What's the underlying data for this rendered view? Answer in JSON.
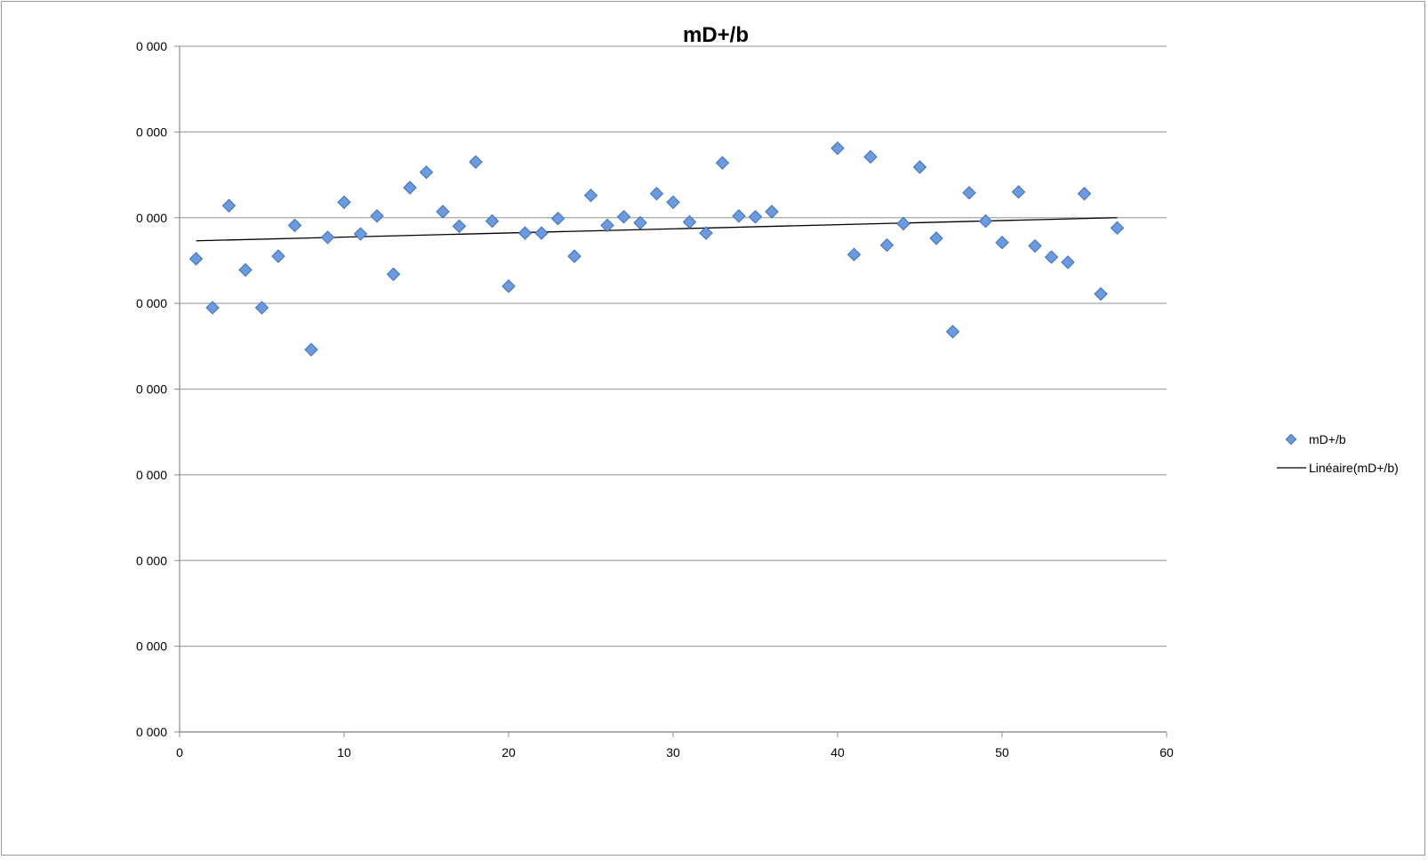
{
  "chart_data": {
    "type": "scatter",
    "title": "mD+/b",
    "xlabel": "",
    "ylabel": "",
    "xlim": [
      0,
      60
    ],
    "ylim": [
      0,
      8
    ],
    "x_ticks": [
      0,
      10,
      20,
      30,
      40,
      50,
      60
    ],
    "y_ticks": [
      0,
      1,
      2,
      3,
      4,
      5,
      6,
      7,
      8
    ],
    "y_tick_labels": [
      "0 000",
      "0 000",
      "0 000",
      "0 000",
      "0 000",
      "0 000",
      "0 000",
      "0 000",
      "0 000"
    ],
    "grid": "horizontal",
    "legend_position": "right",
    "colors": {
      "marker_fill": "#6a9be0",
      "marker_stroke": "#3d6fb5",
      "trend": "#000000",
      "grid": "#a6a6a6",
      "axis": "#8c8c8c"
    },
    "series": [
      {
        "name": "mD+/b",
        "marker": "diamond",
        "x": [
          1,
          2,
          3,
          4,
          5,
          6,
          7,
          8,
          9,
          10,
          11,
          12,
          13,
          14,
          15,
          16,
          17,
          18,
          19,
          20,
          21,
          22,
          23,
          24,
          25,
          26,
          27,
          28,
          29,
          30,
          31,
          32,
          33,
          34,
          35,
          36,
          40,
          41,
          42,
          43,
          44,
          45,
          46,
          47,
          48,
          49,
          50,
          51,
          52,
          53,
          54,
          55,
          56,
          57
        ],
        "y": [
          5.52,
          4.95,
          6.14,
          5.39,
          4.95,
          5.55,
          5.91,
          4.46,
          5.77,
          6.18,
          5.81,
          6.02,
          5.34,
          6.35,
          6.53,
          6.07,
          5.9,
          6.65,
          5.96,
          5.2,
          5.82,
          5.82,
          5.99,
          5.55,
          6.26,
          5.91,
          6.01,
          5.94,
          6.28,
          6.18,
          5.95,
          5.82,
          6.64,
          6.02,
          6.01,
          6.07,
          6.81,
          5.57,
          6.71,
          5.68,
          5.93,
          6.59,
          5.76,
          4.67,
          6.29,
          5.96,
          5.71,
          6.3,
          5.67,
          5.54,
          5.48,
          6.28,
          5.11,
          5.88
        ]
      },
      {
        "name": "Linéaire(mD+/b)",
        "type": "line",
        "x": [
          1,
          57
        ],
        "y": [
          5.73,
          6.0
        ]
      }
    ]
  }
}
